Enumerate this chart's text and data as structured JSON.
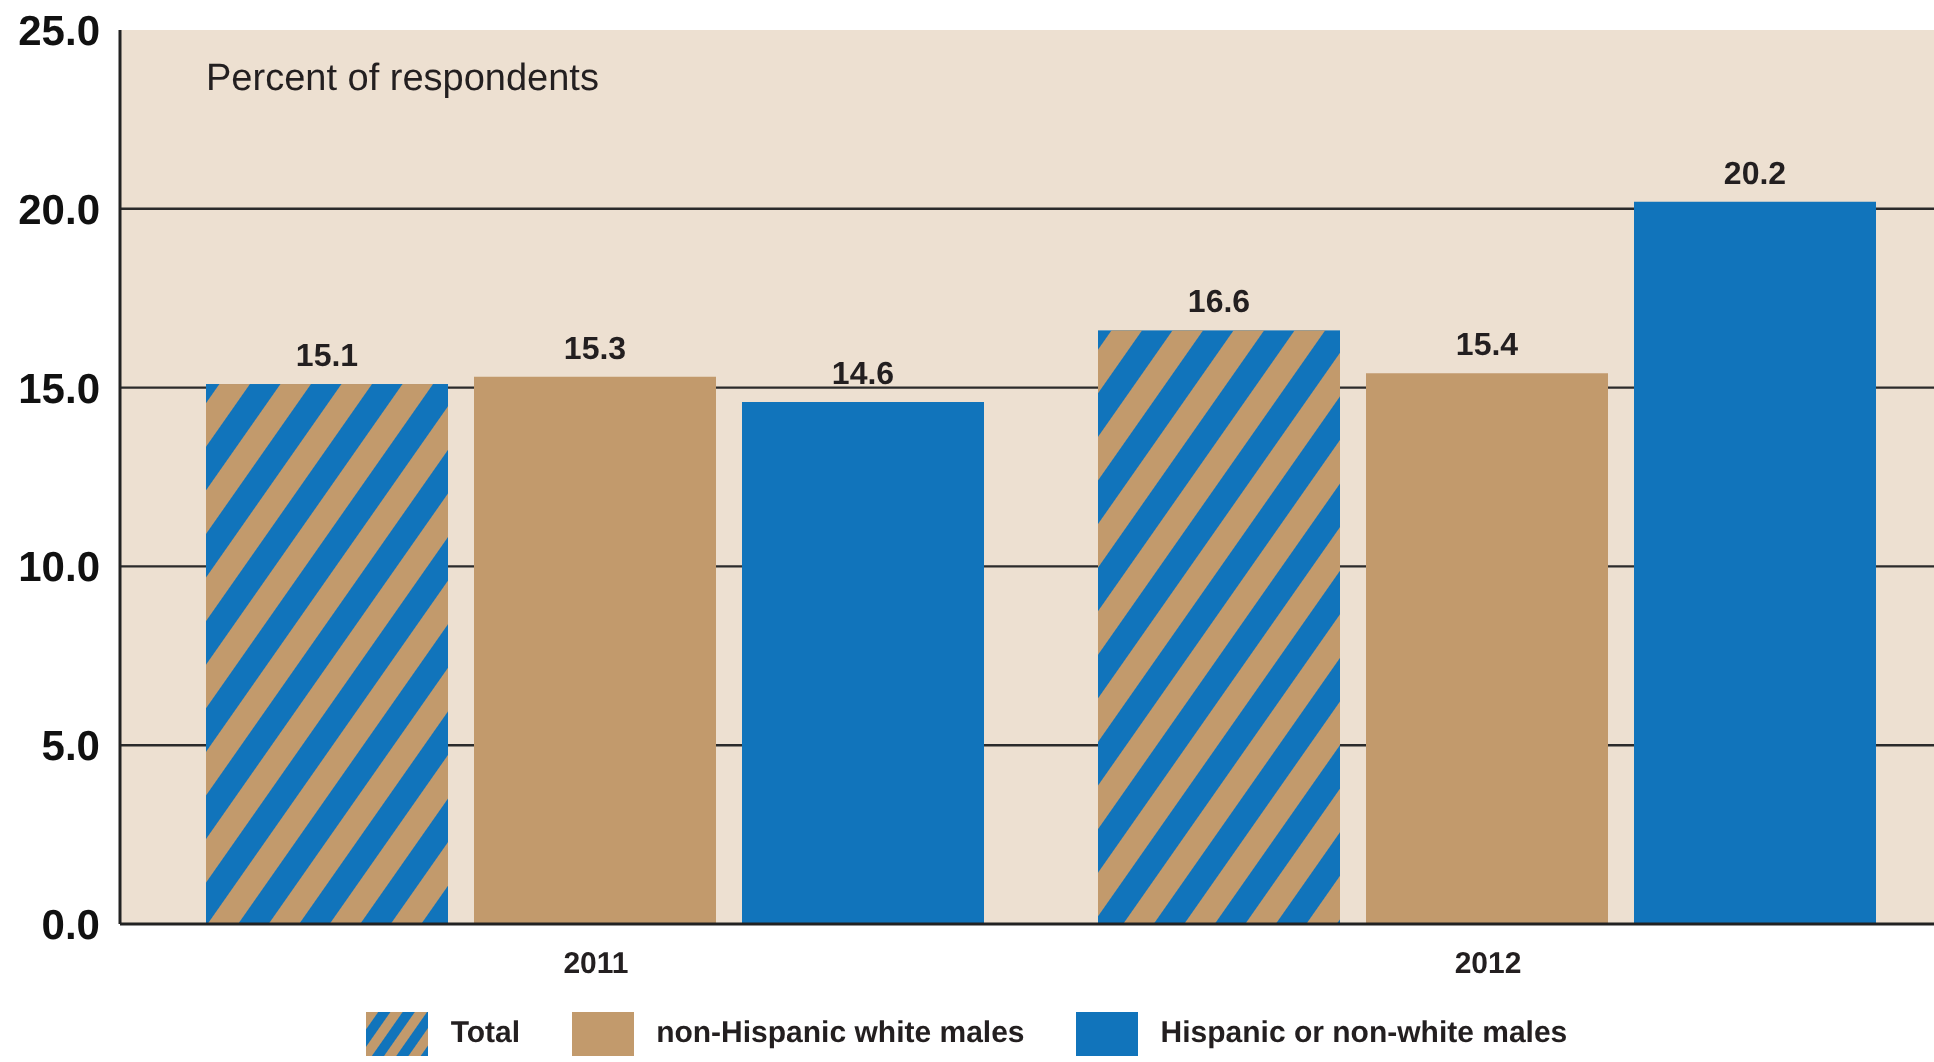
{
  "chart_data": {
    "type": "bar",
    "ylabel": "Percent of respondents",
    "categories": [
      "2011",
      "2012"
    ],
    "series": [
      {
        "name": "Total",
        "color": "#1174bb",
        "values": [
          15.1,
          16.6
        ]
      },
      {
        "name": "non-Hispanic white males",
        "color": "#c29a6c",
        "values": [
          15.3,
          15.4
        ]
      },
      {
        "name": "Hispanic or non-white males",
        "color": "#1174bb",
        "values": [
          14.6,
          20.2
        ]
      }
    ],
    "ylim": [
      0,
      25
    ],
    "yticks": [
      {
        "value": 0,
        "label": "0.0"
      },
      {
        "value": 5,
        "label": "5.0"
      },
      {
        "value": 10,
        "label": "10.0"
      },
      {
        "value": 15,
        "label": "15.0"
      },
      {
        "value": 20,
        "label": "20.0"
      },
      {
        "value": 25,
        "label": "25.0"
      }
    ],
    "grid": "y",
    "legend": "bottom",
    "data_labels": true
  }
}
